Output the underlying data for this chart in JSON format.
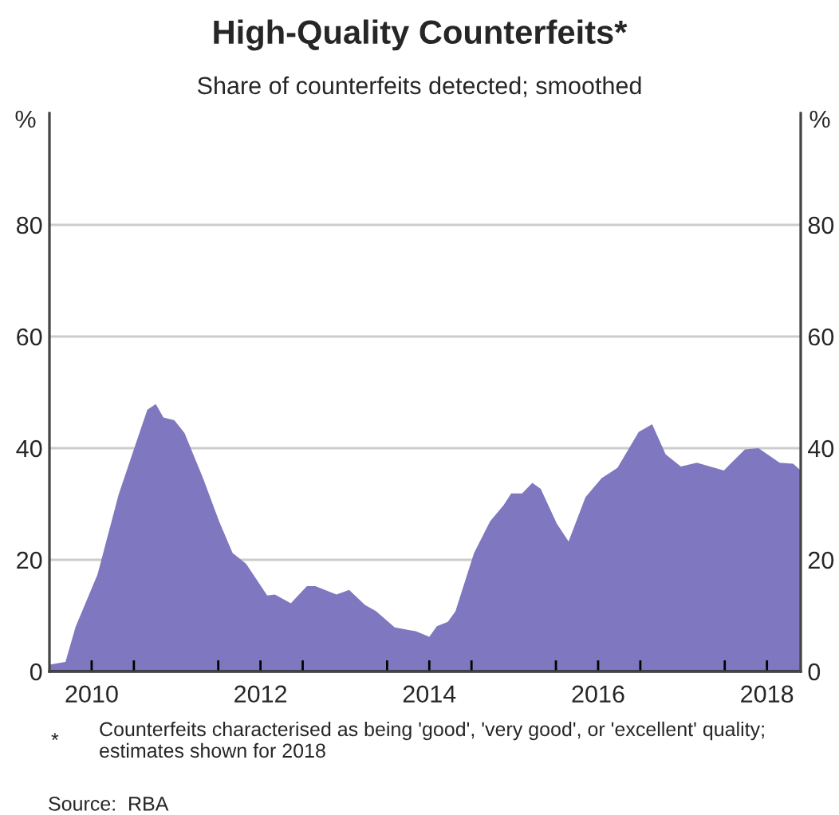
{
  "chart_data": {
    "type": "area",
    "title": "High-Quality Counterfeits*",
    "subtitle": "Share of counterfeits detected; smoothed",
    "ylabel": "%",
    "y2label": "%",
    "x": [
      2010.0,
      2010.19,
      2010.31,
      2010.57,
      2010.82,
      2011.0,
      2011.16,
      2011.26,
      2011.35,
      2011.48,
      2011.6,
      2011.82,
      2012.01,
      2012.17,
      2012.33,
      2012.58,
      2012.67,
      2012.86,
      2013.05,
      2013.15,
      2013.4,
      2013.55,
      2013.74,
      2013.87,
      2014.09,
      2014.34,
      2014.5,
      2014.59,
      2014.72,
      2014.81,
      2015.03,
      2015.22,
      2015.38,
      2015.47,
      2015.6,
      2015.72,
      2015.82,
      2016.01,
      2016.15,
      2016.35,
      2016.54,
      2016.73,
      2016.98,
      2017.14,
      2017.3,
      2017.48,
      2017.67,
      2017.99,
      2018.08,
      2018.24,
      2018.4,
      2018.65,
      2018.81,
      2018.9
    ],
    "series": [
      {
        "color": "#7f77bf",
        "values": [
          1.2,
          1.7,
          8,
          17.4,
          31.7,
          39.8,
          46.9,
          47.9,
          45.5,
          45,
          42.7,
          34.6,
          26.9,
          21.2,
          19.3,
          13.6,
          13.8,
          12.2,
          15.3,
          15.3,
          13.8,
          14.6,
          11.9,
          10.8,
          7.9,
          7.2,
          6.2,
          8.1,
          8.9,
          10.8,
          21.2,
          26.9,
          29.8,
          31.9,
          31.9,
          33.8,
          32.7,
          26.5,
          23.3,
          31.2,
          34.6,
          36.5,
          42.9,
          44.3,
          38.9,
          36.7,
          37.4,
          36,
          37.4,
          39.8,
          40,
          37.4,
          37.2,
          36
        ]
      }
    ],
    "xlim": [
      2010,
      2018.9
    ],
    "xticks": [
      {
        "value": 2010.5,
        "label": "2010"
      },
      {
        "value": 2011,
        "label": null
      },
      {
        "value": 2012,
        "label": null
      },
      {
        "value": 2012.5,
        "label": "2012"
      },
      {
        "value": 2013,
        "label": null
      },
      {
        "value": 2014,
        "label": null
      },
      {
        "value": 2014.5,
        "label": "2014"
      },
      {
        "value": 2015,
        "label": null
      },
      {
        "value": 2016,
        "label": null
      },
      {
        "value": 2016.5,
        "label": "2016"
      },
      {
        "value": 2017,
        "label": null
      },
      {
        "value": 2018,
        "label": null
      },
      {
        "value": 2018.5,
        "label": "2018"
      }
    ],
    "ylim": [
      0,
      100
    ],
    "yticks": [
      0,
      20,
      40,
      60,
      80
    ],
    "y2lim": [
      0,
      100
    ],
    "y2ticks": [
      0,
      20,
      40,
      60,
      80
    ],
    "grid": "y",
    "annotations": [
      "*",
      "Counterfeits characterised as being 'good', 'very good', or 'excellent' quality; estimates shown for 2018",
      "Source:",
      "RBA"
    ]
  }
}
